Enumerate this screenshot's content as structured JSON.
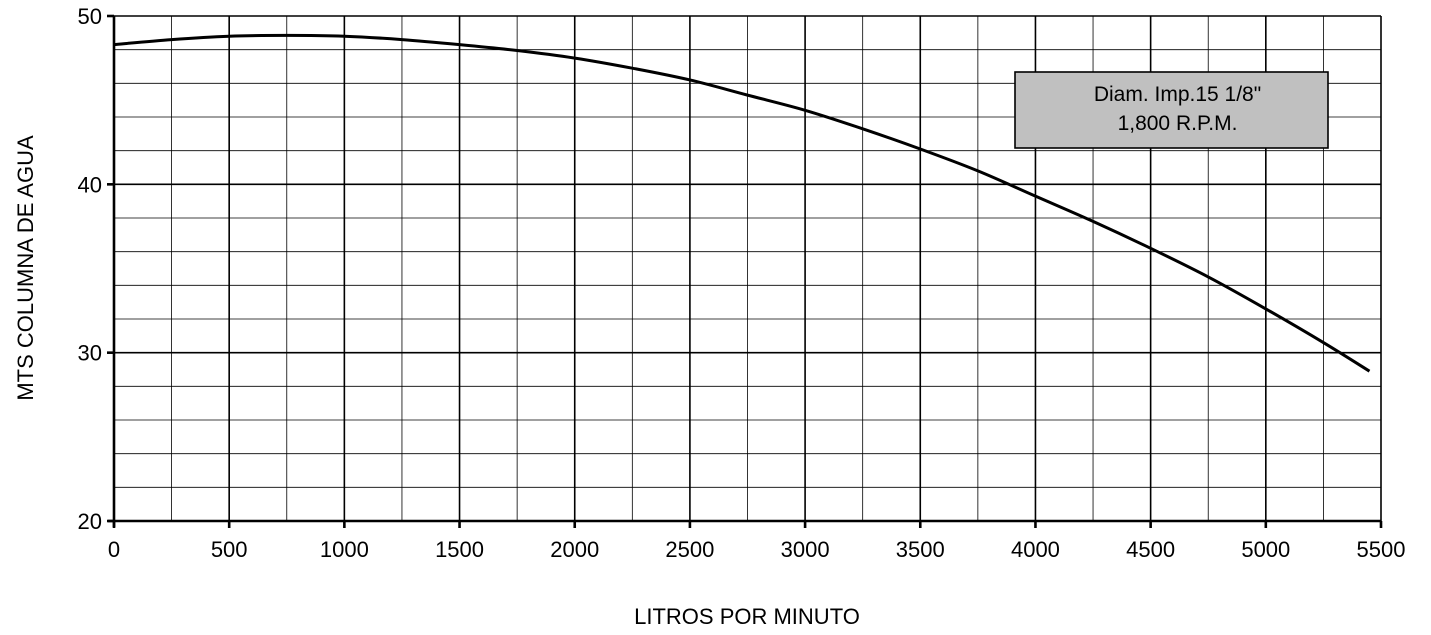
{
  "chart_data": {
    "type": "line",
    "xlabel": "LITROS POR MINUTO",
    "ylabel": "MTS COLUMNA DE AGUA",
    "xlim": [
      0,
      5500
    ],
    "ylim": [
      20,
      50
    ],
    "x_ticks": [
      0,
      500,
      1000,
      1500,
      2000,
      2500,
      3000,
      3500,
      4000,
      4500,
      5000,
      5500
    ],
    "y_ticks": [
      20,
      30,
      40,
      50
    ],
    "x_minor_step": 250,
    "y_minor_step": 2,
    "grid": true,
    "annotation": {
      "lines": [
        "Diam. Imp.15 1/8\"",
        "1,800 R.P.M."
      ],
      "fill": "#c0c0c0"
    },
    "series": [
      {
        "x": [
          0,
          250,
          500,
          750,
          1000,
          1250,
          1500,
          1750,
          2000,
          2250,
          2500,
          2750,
          3000,
          3250,
          3500,
          3750,
          4000,
          4250,
          4500,
          4750,
          5000,
          5250,
          5450
        ],
        "y": [
          48.3,
          48.6,
          48.8,
          48.85,
          48.8,
          48.6,
          48.3,
          47.95,
          47.5,
          46.9,
          46.2,
          45.3,
          44.4,
          43.3,
          42.1,
          40.8,
          39.3,
          37.8,
          36.2,
          34.5,
          32.6,
          30.6,
          28.9
        ]
      }
    ]
  }
}
